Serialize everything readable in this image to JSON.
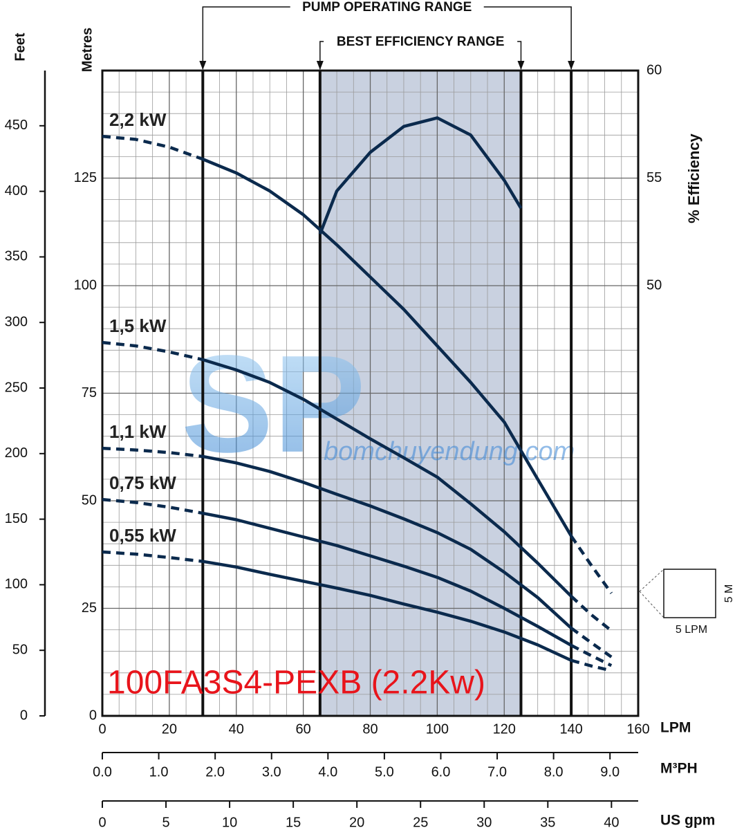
{
  "chart_data": {
    "type": "line",
    "title": "100FA3S4-PEXB (2.2Kw)",
    "x": [
      0,
      10,
      20,
      30,
      40,
      50,
      60,
      70,
      80,
      90,
      100,
      110,
      120,
      130,
      140,
      146,
      152
    ],
    "xlim": [
      0,
      160
    ],
    "xticks": [
      0,
      20,
      40,
      60,
      80,
      100,
      120,
      140,
      160
    ],
    "x_minor_ticks": [
      5,
      10,
      15,
      25,
      30,
      35,
      45,
      50,
      55,
      65,
      70,
      75,
      85,
      90,
      95,
      105,
      110,
      115,
      125,
      130,
      135,
      145,
      150,
      155
    ],
    "x_label": "LPM",
    "ylim": [
      0,
      150
    ],
    "yticks": [
      0,
      25,
      50,
      75,
      100,
      125
    ],
    "y_minor_ticks": [
      5,
      10,
      15,
      20,
      30,
      35,
      40,
      45,
      55,
      60,
      65,
      70,
      80,
      85,
      90,
      95,
      105,
      110,
      115,
      120,
      130,
      135,
      140,
      145
    ],
    "y_label": "Metres",
    "feet_axis": {
      "label": "Feet",
      "lim": [
        0,
        492.1
      ],
      "ticks": [
        0,
        50,
        100,
        150,
        200,
        250,
        300,
        350,
        400,
        450
      ]
    },
    "y2lim": [
      30,
      60
    ],
    "y2ticks": [
      50,
      55,
      60
    ],
    "y2_label": "% Efficiency",
    "m3ph_axis": {
      "label": "M³PH",
      "lim": [
        0,
        9.5
      ],
      "ticks": [
        {
          "value": 0,
          "label": "0.0"
        },
        {
          "value": 1,
          "label": "1.0"
        },
        {
          "value": 2,
          "label": "2.0"
        },
        {
          "value": 3,
          "label": "3.0"
        },
        {
          "value": 4,
          "label": "4.0"
        },
        {
          "value": 5,
          "label": "5.0"
        },
        {
          "value": 6,
          "label": "6.0"
        },
        {
          "value": 7,
          "label": "7.0"
        },
        {
          "value": 8,
          "label": "8.0"
        },
        {
          "value": 9,
          "label": "9.0"
        }
      ]
    },
    "gpm_axis": {
      "label": "US gpm",
      "lim": [
        0,
        42.1
      ],
      "ticks": [
        0,
        5,
        10,
        15,
        20,
        25,
        30,
        35,
        40
      ]
    },
    "series": [
      {
        "name": "2,2 kW",
        "color": "#0b2a4d",
        "values": [
          134.7,
          134,
          132.2,
          129.4,
          126.2,
          122,
          116.5,
          109.5,
          102,
          94.5,
          86,
          77.5,
          68.3,
          55,
          41.8,
          35,
          28.5
        ]
      },
      {
        "name": "1,5 kW",
        "color": "#0b2a4d",
        "values": [
          86.8,
          86,
          84.6,
          82.8,
          80.4,
          77.5,
          73.6,
          69,
          64.4,
          60,
          55.5,
          49.3,
          42.8,
          35.5,
          27.8,
          23.5,
          19.8
        ]
      },
      {
        "name": "1,1 kW",
        "color": "#0b2a4d",
        "values": [
          62.2,
          61.8,
          61.2,
          60.3,
          58.8,
          56.8,
          54.3,
          51.5,
          48.8,
          45.8,
          42.6,
          38.7,
          33.4,
          27.5,
          20.4,
          17,
          13.7
        ]
      },
      {
        "name": "0,75 kW",
        "color": "#0b2a4d",
        "values": [
          50.3,
          49.6,
          48.5,
          47.1,
          45.6,
          43.6,
          41.6,
          39.6,
          37.2,
          34.8,
          32.2,
          29,
          25,
          20.8,
          16.4,
          14,
          11.7
        ]
      },
      {
        "name": "0,55 kW",
        "color": "#0b2a4d",
        "values": [
          38.1,
          37.6,
          36.8,
          35.9,
          34.6,
          32.9,
          31.3,
          29.7,
          28,
          26,
          24.1,
          22,
          19.5,
          16.5,
          12.9,
          11.6,
          10.5
        ]
      }
    ],
    "efficiency": {
      "axis": "y2",
      "color": "#0b2a4d",
      "x": [
        65,
        70,
        80,
        90,
        100,
        110,
        120,
        125
      ],
      "values": [
        52.4,
        54.4,
        56.2,
        57.4,
        57.8,
        57,
        54.9,
        53.6
      ]
    },
    "pump_operating_range": {
      "label": "PUMP OPERATING RANGE",
      "range": [
        30,
        140
      ]
    },
    "best_efficiency_range": {
      "label": "BEST EFFICIENCY RANGE",
      "range": [
        65,
        125
      ],
      "color": "#c9d1e0"
    },
    "scale_key": {
      "x_label": "5 LPM",
      "y_label": "5 M"
    },
    "watermark": {
      "logo": "SP",
      "site": "bomchuyendung.com"
    },
    "grid": true
  }
}
